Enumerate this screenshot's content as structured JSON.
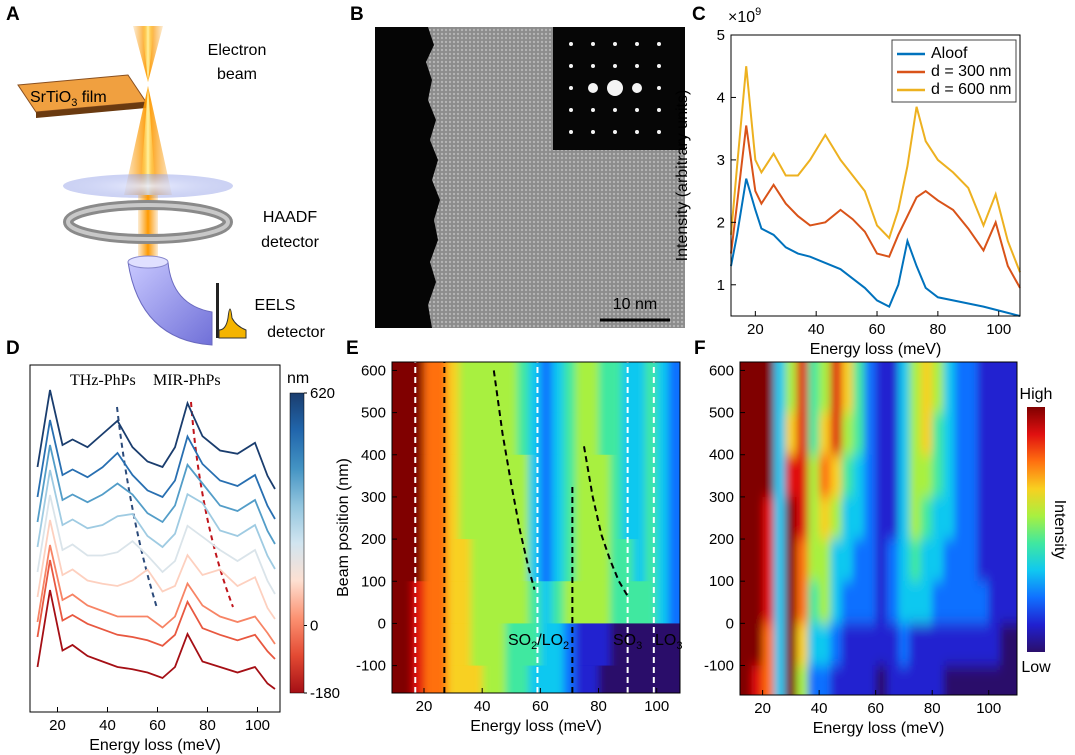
{
  "panel_labels": [
    "A",
    "B",
    "C",
    "D",
    "E",
    "F"
  ],
  "panel_a": {
    "beam_label": [
      "Electron",
      "beam"
    ],
    "film_label": [
      {
        "text": "SrTiO"
      },
      {
        "sub": "3"
      },
      {
        "text": " film"
      }
    ],
    "haadf_label": [
      "HAADF",
      "detector"
    ],
    "eels_label": [
      "EELS",
      "detector"
    ]
  },
  "panel_b": {
    "scale_bar": "10 nm"
  },
  "chart_data": [
    {
      "type": "line",
      "multiplier": [
        {
          "text": "×10"
        },
        {
          "sup": "9"
        }
      ],
      "xlabel": "Energy loss (meV)",
      "ylabel": "Intensity (arbitrary units)",
      "x": [
        12,
        14,
        17,
        20,
        22,
        26,
        30,
        34,
        38,
        43,
        48,
        52,
        56,
        60,
        64,
        67,
        70,
        73,
        76,
        80,
        85,
        90,
        95,
        99,
        103,
        107
      ],
      "series": [
        {
          "name": "Aloof",
          "color": "#0072bd",
          "values": [
            1.3,
            1.8,
            2.7,
            2.2,
            1.9,
            1.8,
            1.6,
            1.5,
            1.45,
            1.35,
            1.25,
            1.1,
            0.95,
            0.75,
            0.65,
            1.0,
            1.7,
            1.3,
            0.95,
            0.8,
            0.75,
            0.7,
            0.65,
            0.6,
            0.55,
            0.5
          ]
        },
        {
          "name": "d = 300 nm",
          "color": "#d95319",
          "values": [
            1.5,
            2.3,
            3.55,
            2.5,
            2.3,
            2.6,
            2.3,
            2.1,
            1.95,
            2.0,
            2.2,
            2.05,
            1.85,
            1.5,
            1.45,
            1.8,
            2.1,
            2.4,
            2.5,
            2.35,
            2.2,
            1.9,
            1.55,
            2.0,
            1.3,
            0.95
          ]
        },
        {
          "name": "d = 600 nm",
          "color": "#edb120",
          "values": [
            1.8,
            2.9,
            4.5,
            3.0,
            2.8,
            3.1,
            2.75,
            2.75,
            3.0,
            3.4,
            3.0,
            2.75,
            2.5,
            1.95,
            1.75,
            2.2,
            2.9,
            3.85,
            3.3,
            3.0,
            2.8,
            2.55,
            1.95,
            2.45,
            1.7,
            1.2
          ]
        }
      ],
      "xlim": [
        12,
        107
      ],
      "ylim": [
        0.5,
        5
      ],
      "xticks": [
        20,
        40,
        60,
        80,
        100
      ],
      "yticks": [
        1,
        2,
        3,
        4,
        5
      ],
      "legend": "upper right"
    },
    {
      "type": "waterfall",
      "xlabel": "Energy loss (meV)",
      "x": [
        12,
        17,
        22,
        26,
        32,
        38,
        44,
        50,
        56,
        62,
        67,
        72,
        78,
        85,
        92,
        99,
        104,
        107
      ],
      "series": [
        {
          "position": -180,
          "values": [
            0.3,
            1.0,
            0.45,
            0.5,
            0.4,
            0.35,
            0.3,
            0.28,
            0.25,
            0.2,
            0.3,
            0.6,
            0.35,
            0.3,
            0.25,
            0.3,
            0.15,
            0.1
          ]
        },
        {
          "position": -60,
          "values": [
            0.3,
            1.0,
            0.45,
            0.5,
            0.42,
            0.37,
            0.32,
            0.3,
            0.27,
            0.22,
            0.32,
            0.62,
            0.38,
            0.32,
            0.27,
            0.32,
            0.17,
            0.1
          ]
        },
        {
          "position": 0,
          "values": [
            0.3,
            1.0,
            0.5,
            0.55,
            0.45,
            0.4,
            0.35,
            0.35,
            0.35,
            0.25,
            0.35,
            0.65,
            0.45,
            0.35,
            0.3,
            0.35,
            0.2,
            0.1
          ]
        },
        {
          "position": 100,
          "values": [
            0.3,
            1.0,
            0.5,
            0.55,
            0.45,
            0.42,
            0.4,
            0.45,
            0.55,
            0.35,
            0.4,
            0.68,
            0.5,
            0.55,
            0.4,
            0.48,
            0.2,
            0.1
          ]
        },
        {
          "position": 200,
          "values": [
            0.3,
            1.0,
            0.5,
            0.55,
            0.45,
            0.45,
            0.48,
            0.58,
            0.45,
            0.3,
            0.4,
            0.72,
            0.62,
            0.5,
            0.4,
            0.5,
            0.22,
            0.1
          ]
        },
        {
          "position": 300,
          "values": [
            0.3,
            1.0,
            0.5,
            0.55,
            0.47,
            0.5,
            0.58,
            0.6,
            0.4,
            0.3,
            0.42,
            0.78,
            0.7,
            0.45,
            0.4,
            0.5,
            0.22,
            0.1
          ]
        },
        {
          "position": 400,
          "values": [
            0.3,
            1.0,
            0.5,
            0.55,
            0.48,
            0.55,
            0.65,
            0.55,
            0.38,
            0.3,
            0.45,
            0.82,
            0.65,
            0.45,
            0.4,
            0.5,
            0.22,
            0.1
          ]
        },
        {
          "position": 500,
          "values": [
            0.3,
            1.0,
            0.5,
            0.55,
            0.48,
            0.57,
            0.7,
            0.5,
            0.36,
            0.3,
            0.45,
            0.85,
            0.6,
            0.45,
            0.4,
            0.5,
            0.22,
            0.1
          ]
        },
        {
          "position": 620,
          "values": [
            0.3,
            1.0,
            0.5,
            0.55,
            0.48,
            0.6,
            0.72,
            0.48,
            0.35,
            0.3,
            0.48,
            0.88,
            0.58,
            0.45,
            0.42,
            0.52,
            0.22,
            0.1
          ]
        }
      ],
      "xlim": [
        9,
        109
      ],
      "xticks": [
        20,
        40,
        60,
        80,
        100
      ],
      "colorbar": {
        "label": "nm",
        "lim": [
          -180,
          620
        ],
        "ticks": [
          -180,
          0,
          620
        ],
        "colors": [
          "#a50f15",
          "#e34a33",
          "#fc9272",
          "#fde0d2",
          "#d1e5f0",
          "#92c5de",
          "#4393c3",
          "#2166ac",
          "#1a3d6e"
        ]
      },
      "annotations": [
        {
          "text": "THz-PhPs",
          "color": "#2b4a7a"
        },
        {
          "text": "MIR-PhPs",
          "color": "#c0141b"
        }
      ]
    },
    {
      "type": "heatmap",
      "xlabel": "Energy loss (meV)",
      "ylabel": "Beam position (nm)",
      "x": [
        14,
        18,
        22,
        26,
        30,
        34,
        38,
        42,
        46,
        50,
        54,
        58,
        62,
        66,
        70,
        74,
        78,
        82,
        86,
        90,
        94,
        98,
        102,
        106
      ],
      "y": [
        550,
        450,
        350,
        250,
        150,
        50,
        -50,
        -150
      ],
      "z": [
        [
          9,
          9,
          7,
          7,
          6,
          5,
          5,
          5,
          5,
          5,
          4,
          3,
          2,
          3,
          4,
          5,
          5,
          4,
          4,
          3,
          3,
          4,
          3,
          2
        ],
        [
          9,
          9,
          7,
          7,
          6,
          5,
          5,
          5,
          5,
          5,
          4,
          3,
          2,
          3,
          4,
          5,
          5,
          4,
          4,
          3,
          3,
          4,
          3,
          2
        ],
        [
          9,
          9,
          7,
          7,
          6,
          5,
          5,
          5,
          5,
          5,
          5,
          3,
          2,
          3,
          4,
          5,
          5,
          5,
          4,
          3,
          3,
          4,
          3,
          2
        ],
        [
          9,
          9,
          7,
          7,
          6,
          5,
          5,
          5,
          5,
          5,
          5,
          3,
          2,
          3,
          4,
          5,
          5,
          5,
          4,
          3,
          3,
          4,
          3,
          2
        ],
        [
          9,
          9,
          7,
          7,
          6,
          6,
          5,
          5,
          5,
          5,
          5,
          3,
          2,
          3,
          4,
          5,
          5,
          5,
          4,
          4,
          3,
          4,
          3,
          2
        ],
        [
          9,
          8,
          7,
          7,
          6,
          6,
          5,
          5,
          5,
          5,
          5,
          4,
          3,
          4,
          5,
          5,
          5,
          5,
          4,
          4,
          4,
          4,
          3,
          2
        ],
        [
          9,
          8,
          7,
          7,
          6,
          6,
          5,
          5,
          5,
          4,
          4,
          4,
          3,
          3,
          2,
          1,
          1,
          1,
          0,
          0,
          0,
          0,
          0,
          0
        ],
        [
          9,
          8,
          7,
          7,
          6,
          6,
          6,
          5,
          5,
          4,
          4,
          3,
          3,
          3,
          2,
          1,
          1,
          0,
          0,
          0,
          0,
          0,
          0,
          0
        ]
      ],
      "zlim": [
        0,
        9
      ],
      "colormap": [
        "#2b0f6b",
        "#2020d0",
        "#1070ff",
        "#10c8f0",
        "#40e8a0",
        "#a8f040",
        "#f8d020",
        "#ff7010",
        "#e01010",
        "#800000"
      ],
      "xlim": [
        9,
        108
      ],
      "ylim": [
        -165,
        620
      ],
      "xticks": [
        20,
        40,
        60,
        80,
        100
      ],
      "yticks": [
        -100,
        0,
        100,
        200,
        300,
        400,
        500,
        600
      ],
      "vlines": [
        {
          "x": 17,
          "color": "#ffffff"
        },
        {
          "x": 59,
          "color": "#ffffff"
        },
        {
          "x": 90,
          "color": "#ffffff"
        },
        {
          "x": 99,
          "color": "#ffffff"
        },
        {
          "x": 27,
          "color": "#000000"
        },
        {
          "x": 71,
          "color": "#000000",
          "y_end": 330
        }
      ],
      "dashed_curves": [
        {
          "color": "#000000",
          "x": [
            44,
            47,
            50,
            53,
            56,
            58
          ],
          "y": [
            600,
            450,
            330,
            220,
            130,
            80
          ]
        },
        {
          "color": "#000000",
          "x": [
            75,
            78,
            81,
            84,
            87,
            90
          ],
          "y": [
            420,
            300,
            210,
            150,
            100,
            65
          ]
        }
      ],
      "annotations": [
        [
          {
            "text": "SO"
          },
          {
            "sub": "2"
          },
          {
            "text": "/LO"
          },
          {
            "sub": "2"
          }
        ],
        [
          {
            "text": "SO"
          },
          {
            "sub": "3"
          }
        ],
        [
          {
            "text": "LO"
          },
          {
            "sub": "3"
          }
        ]
      ]
    },
    {
      "type": "heatmap",
      "xlabel": "Energy loss (meV)",
      "x": [
        14,
        18,
        22,
        26,
        30,
        34,
        38,
        42,
        46,
        50,
        54,
        58,
        62,
        66,
        70,
        74,
        78,
        82,
        86,
        90,
        94,
        98,
        102,
        106
      ],
      "y": [
        550,
        450,
        350,
        250,
        150,
        50,
        -50,
        -150
      ],
      "z": [
        [
          9,
          9,
          9,
          3,
          5,
          8,
          4,
          5,
          8,
          6,
          4,
          2,
          1,
          1,
          3,
          5,
          6,
          5,
          3,
          2,
          2,
          1,
          1,
          1
        ],
        [
          9,
          9,
          9,
          3,
          6,
          8,
          4,
          6,
          8,
          5,
          4,
          2,
          1,
          1,
          3,
          5,
          6,
          4,
          3,
          2,
          2,
          1,
          1,
          1
        ],
        [
          9,
          9,
          9,
          3,
          8,
          8,
          5,
          7,
          6,
          4,
          3,
          2,
          1,
          1,
          3,
          5,
          5,
          4,
          3,
          2,
          2,
          1,
          1,
          1
        ],
        [
          9,
          9,
          8,
          3,
          9,
          8,
          5,
          6,
          5,
          3,
          3,
          2,
          1,
          1,
          3,
          5,
          4,
          3,
          3,
          2,
          2,
          1,
          1,
          1
        ],
        [
          9,
          9,
          8,
          3,
          9,
          7,
          5,
          5,
          3,
          3,
          2,
          2,
          1,
          2,
          3,
          4,
          3,
          3,
          2,
          2,
          2,
          1,
          1,
          1
        ],
        [
          9,
          9,
          8,
          3,
          9,
          7,
          4,
          5,
          3,
          2,
          2,
          2,
          1,
          2,
          3,
          3,
          3,
          2,
          2,
          2,
          2,
          2,
          1,
          1
        ],
        [
          9,
          9,
          7,
          3,
          9,
          6,
          3,
          3,
          2,
          1,
          1,
          1,
          1,
          1,
          2,
          1,
          1,
          1,
          1,
          1,
          1,
          1,
          1,
          0
        ],
        [
          9,
          8,
          7,
          3,
          9,
          5,
          2,
          2,
          1,
          1,
          1,
          1,
          0,
          1,
          1,
          1,
          1,
          1,
          0,
          0,
          0,
          0,
          0,
          0
        ]
      ],
      "zlim": [
        0,
        9
      ],
      "colormap": [
        "#2b0f6b",
        "#2020d0",
        "#1070ff",
        "#10c8f0",
        "#40e8a0",
        "#a8f040",
        "#f8d020",
        "#ff7010",
        "#e01010",
        "#800000"
      ],
      "xlim": [
        12,
        110
      ],
      "ylim": [
        -170,
        620
      ],
      "xticks": [
        20,
        40,
        60,
        80,
        100
      ],
      "yticks": [
        -100,
        0,
        100,
        200,
        300,
        400,
        500,
        600
      ],
      "colorbar": {
        "high": "High",
        "low": "Low",
        "label": "Intensity"
      }
    }
  ]
}
